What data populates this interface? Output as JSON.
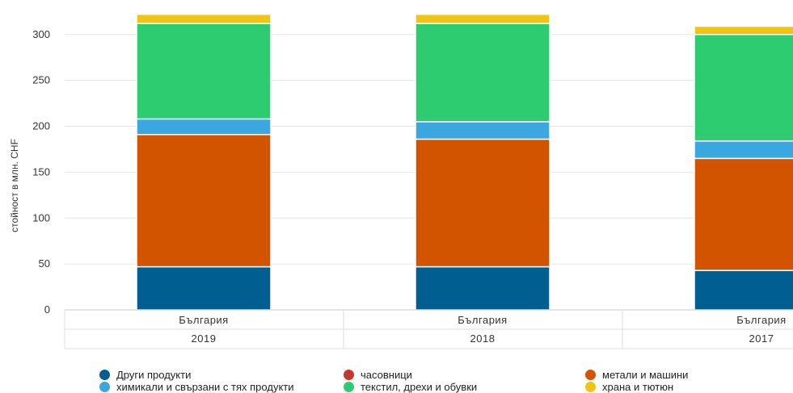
{
  "chart_data": {
    "type": "bar",
    "stacked": true,
    "ylabel": "стойност в млн. CHF",
    "ylim": [
      0,
      320
    ],
    "yticks": [
      0,
      50,
      100,
      150,
      200,
      250,
      300
    ],
    "grid": true,
    "legend_position": "bottom",
    "categories": [
      {
        "label": "България",
        "year": "2019"
      },
      {
        "label": "България",
        "year": "2018"
      },
      {
        "label": "България",
        "year": "2017"
      }
    ],
    "series": [
      {
        "name": "Други продукти",
        "color": "#005f90",
        "values": [
          47,
          47,
          43
        ]
      },
      {
        "name": "часовници",
        "color": "#c0392b",
        "values": [
          0,
          0,
          0
        ]
      },
      {
        "name": "метали и машини",
        "color": "#d35400",
        "values": [
          144,
          139,
          122
        ]
      },
      {
        "name": "химикали и свързани с тях продукти",
        "color": "#3aa8de",
        "values": [
          17,
          19,
          19
        ]
      },
      {
        "name": "текстил, дрехи и обувки",
        "color": "#2ecc71",
        "values": [
          104,
          107,
          116
        ]
      },
      {
        "name": "храна и тютюн",
        "color": "#f1c40f",
        "values": [
          10,
          10,
          9
        ]
      }
    ]
  }
}
